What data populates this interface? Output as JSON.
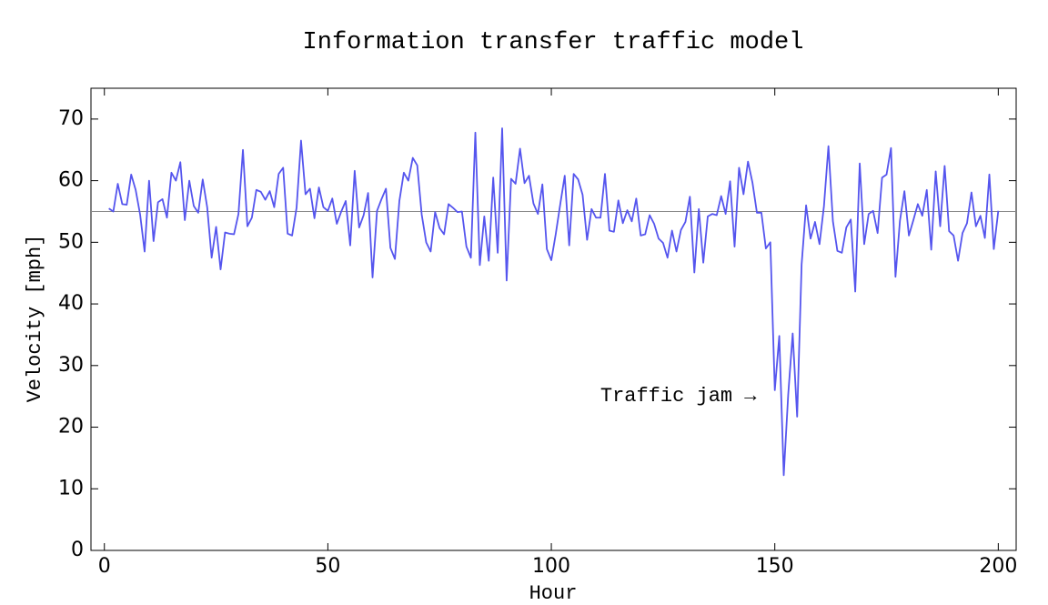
{
  "chart_data": {
    "type": "line",
    "title": "Information transfer traffic model",
    "xlabel": "Hour",
    "ylabel": "Velocity [mph]",
    "annotation": "Traffic jam →",
    "reference_line": 55,
    "reference_color": "#888888",
    "xlim": [
      -3,
      204
    ],
    "ylim": [
      0,
      75
    ],
    "xticks": [
      0,
      50,
      100,
      150,
      200
    ],
    "yticks": [
      0,
      10,
      20,
      30,
      40,
      50,
      60,
      70
    ],
    "grid": false,
    "x": [
      1,
      2,
      3,
      4,
      5,
      6,
      7,
      8,
      9,
      10,
      11,
      12,
      13,
      14,
      15,
      16,
      17,
      18,
      19,
      20,
      21,
      22,
      23,
      24,
      25,
      26,
      27,
      28,
      29,
      30,
      31,
      32,
      33,
      34,
      35,
      36,
      37,
      38,
      39,
      40,
      41,
      42,
      43,
      44,
      45,
      46,
      47,
      48,
      49,
      50,
      51,
      52,
      53,
      54,
      55,
      56,
      57,
      58,
      59,
      60,
      61,
      62,
      63,
      64,
      65,
      66,
      67,
      68,
      69,
      70,
      71,
      72,
      73,
      74,
      75,
      76,
      77,
      78,
      79,
      80,
      81,
      82,
      83,
      84,
      85,
      86,
      87,
      88,
      89,
      90,
      91,
      92,
      93,
      94,
      95,
      96,
      97,
      98,
      99,
      100,
      101,
      102,
      103,
      104,
      105,
      106,
      107,
      108,
      109,
      110,
      111,
      112,
      113,
      114,
      115,
      116,
      117,
      118,
      119,
      120,
      121,
      122,
      123,
      124,
      125,
      126,
      127,
      128,
      129,
      130,
      131,
      132,
      133,
      134,
      135,
      136,
      137,
      138,
      139,
      140,
      141,
      142,
      143,
      144,
      145,
      146,
      147,
      148,
      149,
      150,
      151,
      152,
      153,
      154,
      155,
      156,
      157,
      158,
      159,
      160,
      161,
      162,
      163,
      164,
      165,
      166,
      167,
      168,
      169,
      170,
      171,
      172,
      173,
      174,
      175,
      176,
      177,
      178,
      179,
      180,
      181,
      182,
      183,
      184,
      185,
      186,
      187,
      188,
      189,
      190,
      191,
      192,
      193,
      194,
      195,
      196,
      197,
      198,
      199,
      200
    ],
    "series": [
      {
        "name": "Velocity",
        "color": "#5555ee",
        "values": [
          55.5,
          55,
          59.5,
          56.2,
          56.1,
          61,
          58.5,
          54.5,
          48.5,
          60,
          50.2,
          56.5,
          57,
          54,
          61.3,
          60,
          63,
          53.6,
          60,
          55.9,
          54.8,
          60.2,
          55.7,
          47.5,
          52.5,
          45.6,
          51.6,
          51.4,
          51.3,
          54.6,
          65,
          52.6,
          54,
          58.5,
          58.2,
          56.9,
          58.3,
          55.7,
          61.1,
          62.1,
          51.4,
          51.1,
          55.6,
          66.5,
          57.8,
          58.7,
          53.9,
          58.9,
          55.7,
          55.1,
          57.1,
          53,
          55,
          56.7,
          49.5,
          61.6,
          52.4,
          54.4,
          58,
          44.3,
          55.1,
          57,
          58.7,
          49.1,
          47.3,
          56.7,
          61.3,
          60,
          63.7,
          62.5,
          54.5,
          50,
          48.5,
          54.9,
          52.3,
          51.3,
          56.2,
          55.6,
          54.9,
          55,
          49.3,
          47.5,
          67.8,
          46.3,
          54.2,
          47,
          60.5,
          48.3,
          68.5,
          43.8,
          60.3,
          59.5,
          65.2,
          59.6,
          60.8,
          56.3,
          54.6,
          59.4,
          48.9,
          47.1,
          51.4,
          56.2,
          60.8,
          49.5,
          61.1,
          60.2,
          57.7,
          50.4,
          55.4,
          54,
          54,
          61.1,
          51.9,
          51.7,
          56.8,
          53.1,
          55.2,
          53.4,
          57.1,
          51.1,
          51.3,
          54.4,
          53,
          50.6,
          49.9,
          47.5,
          51.9,
          48.5,
          52,
          53.3,
          57.4,
          45.1,
          55.4,
          46.7,
          54.2,
          54.6,
          54.4,
          57.5,
          54.6,
          59.9,
          49.3,
          62.1,
          57.8,
          63.1,
          59.7,
          54.8,
          54.8,
          49,
          50,
          26,
          34.8,
          12.2,
          25.3,
          35.2,
          21.7,
          46.4,
          56,
          50.6,
          53.3,
          49.7,
          55.9,
          65.6,
          53.4,
          48.6,
          48.3,
          52.4,
          53.7,
          42,
          62.8,
          49.7,
          54.6,
          55.1,
          51.5,
          60.5,
          61,
          65.3,
          44.4,
          53.5,
          58.3,
          51.1,
          53.6,
          56.2,
          54.3,
          58.5,
          48.8,
          61.5,
          52.6,
          62.4,
          51.8,
          51.1,
          47,
          51.5,
          53.1,
          58.1,
          52.6,
          54.3,
          50.7,
          61,
          48.9,
          55.1
        ]
      }
    ]
  }
}
